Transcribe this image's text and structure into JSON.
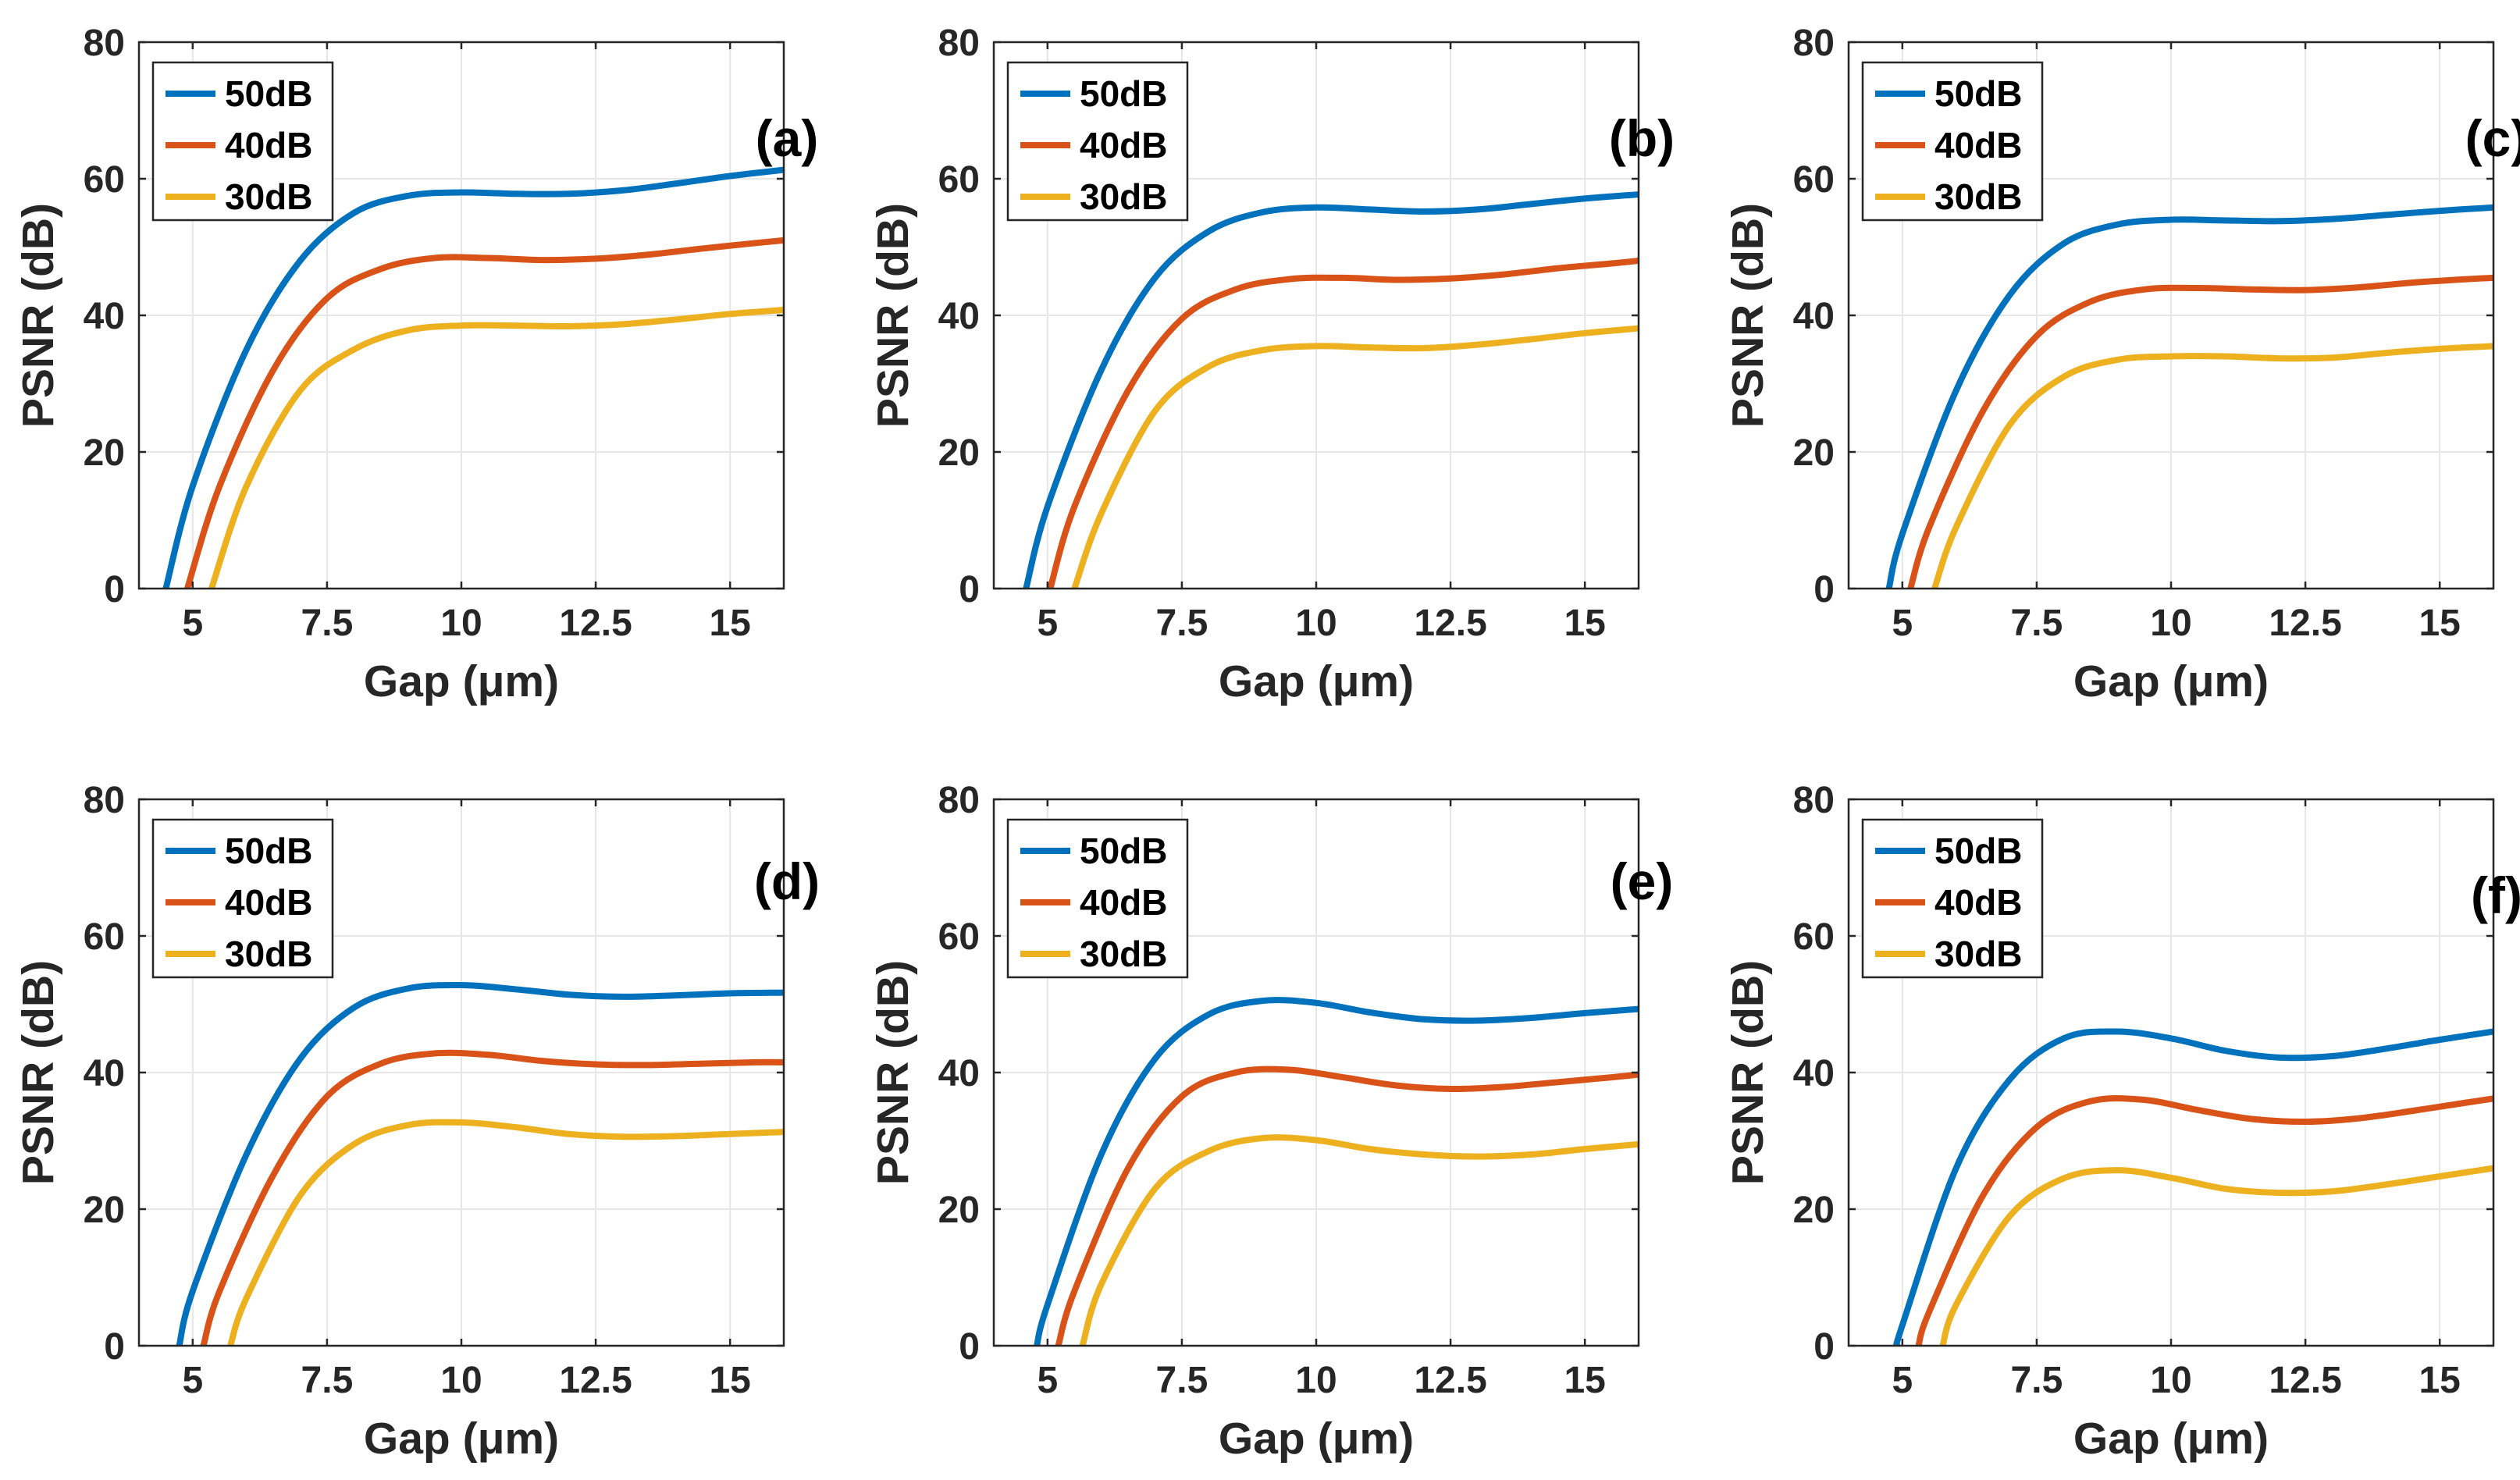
{
  "figure": {
    "series_names": [
      "50dB",
      "40dB",
      "30dB"
    ],
    "colors": [
      "#0072BD",
      "#D95319",
      "#EDB120"
    ]
  },
  "chart_data": [
    {
      "type": "line",
      "panel_label": "(a)",
      "xlabel": "Gap (μm)",
      "ylabel": "PSNR (dB)",
      "xlim": [
        4.0,
        16.0
      ],
      "ylim": [
        0,
        80
      ],
      "xticks": [
        5,
        7.5,
        10,
        12.5,
        15
      ],
      "xtick_labels": [
        "5",
        "7.5",
        "10",
        "12.5",
        "15"
      ],
      "yticks": [
        0,
        20,
        40,
        60,
        80
      ],
      "ytick_labels": [
        "0",
        "20",
        "40",
        "60",
        "80"
      ],
      "legend_location": "top-left",
      "series": [
        {
          "name": "50dB",
          "x": [
            4.5,
            5.0,
            6.0,
            7.0,
            8.0,
            9.0,
            10.0,
            11.0,
            12.0,
            13.0,
            14.0,
            15.0,
            16.0
          ],
          "values": [
            0,
            15,
            35,
            48,
            55,
            57.5,
            58,
            57.8,
            57.8,
            58.3,
            59.3,
            60.4,
            61.3
          ]
        },
        {
          "name": "40dB",
          "x": [
            4.9,
            5.5,
            6.5,
            7.5,
            8.5,
            9.5,
            10.5,
            11.5,
            12.5,
            13.5,
            14.5,
            15.5,
            16.0
          ],
          "values": [
            0,
            15,
            32,
            42.5,
            46.8,
            48.4,
            48.4,
            48.1,
            48.3,
            48.9,
            49.8,
            50.6,
            51.0
          ]
        },
        {
          "name": "30dB",
          "x": [
            5.35,
            6.0,
            7.0,
            8.0,
            9.0,
            10.0,
            11.0,
            12.0,
            13.0,
            14.0,
            15.0,
            16.0
          ],
          "values": [
            0,
            15,
            29,
            35,
            37.8,
            38.5,
            38.5,
            38.4,
            38.7,
            39.4,
            40.2,
            40.8
          ]
        }
      ]
    },
    {
      "type": "line",
      "panel_label": "(b)",
      "xlabel": "Gap (μm)",
      "ylabel": "PSNR (dB)",
      "xlim": [
        4.0,
        16.0
      ],
      "ylim": [
        0,
        80
      ],
      "xticks": [
        5,
        7.5,
        10,
        12.5,
        15
      ],
      "xtick_labels": [
        "5",
        "7.5",
        "10",
        "12.5",
        "15"
      ],
      "yticks": [
        0,
        20,
        40,
        60,
        80
      ],
      "ytick_labels": [
        "0",
        "20",
        "40",
        "60",
        "80"
      ],
      "legend_location": "top-left",
      "series": [
        {
          "name": "50dB",
          "x": [
            4.6,
            5.0,
            6.0,
            7.0,
            8.0,
            9.0,
            10.0,
            11.0,
            12.0,
            13.0,
            14.0,
            15.0,
            16.0
          ],
          "values": [
            0,
            12,
            32,
            45.5,
            52.3,
            55.1,
            55.8,
            55.5,
            55.2,
            55.5,
            56.3,
            57.1,
            57.7
          ]
        },
        {
          "name": "40dB",
          "x": [
            5.05,
            5.5,
            6.5,
            7.5,
            8.5,
            9.5,
            10.5,
            11.5,
            12.5,
            13.5,
            14.5,
            15.5,
            16.0
          ],
          "values": [
            0,
            12,
            29,
            39.5,
            43.8,
            45.3,
            45.5,
            45.2,
            45.4,
            46.0,
            46.9,
            47.6,
            48.0
          ]
        },
        {
          "name": "30dB",
          "x": [
            5.5,
            6.0,
            7.0,
            8.0,
            9.0,
            10.0,
            11.0,
            12.0,
            13.0,
            14.0,
            15.0,
            16.0
          ],
          "values": [
            0,
            11,
            26,
            32.5,
            34.9,
            35.5,
            35.3,
            35.2,
            35.7,
            36.5,
            37.4,
            38.1
          ]
        }
      ]
    },
    {
      "type": "line",
      "panel_label": "(c)",
      "xlabel": "Gap (μm)",
      "ylabel": "PSNR (dB)",
      "xlim": [
        4.0,
        16.0
      ],
      "ylim": [
        0,
        80
      ],
      "xticks": [
        5,
        7.5,
        10,
        12.5,
        15
      ],
      "xtick_labels": [
        "5",
        "7.5",
        "10",
        "12.5",
        "15"
      ],
      "yticks": [
        0,
        20,
        40,
        60,
        80
      ],
      "ytick_labels": [
        "0",
        "20",
        "40",
        "60",
        "80"
      ],
      "legend_location": "top-left",
      "series": [
        {
          "name": "50dB",
          "x": [
            4.75,
            5.0,
            6.0,
            7.0,
            8.0,
            9.0,
            10.0,
            11.0,
            12.0,
            13.0,
            14.0,
            15.0,
            16.0
          ],
          "values": [
            0,
            8,
            29,
            43,
            50.5,
            53.3,
            54,
            53.9,
            53.8,
            54.1,
            54.7,
            55.3,
            55.8
          ]
        },
        {
          "name": "40dB",
          "x": [
            5.15,
            5.5,
            6.5,
            7.5,
            8.5,
            9.5,
            10.5,
            11.5,
            12.5,
            13.5,
            14.5,
            15.5,
            16.0
          ],
          "values": [
            0,
            9,
            26,
            37,
            42,
            43.8,
            44,
            43.8,
            43.7,
            44.1,
            44.8,
            45.3,
            45.5
          ]
        },
        {
          "name": "30dB",
          "x": [
            5.6,
            6.0,
            7.0,
            8.0,
            9.0,
            10.0,
            11.0,
            12.0,
            13.0,
            14.0,
            15.0,
            16.0
          ],
          "values": [
            0,
            9,
            24,
            31,
            33.5,
            34,
            34,
            33.7,
            33.8,
            34.5,
            35.1,
            35.5
          ]
        }
      ]
    },
    {
      "type": "line",
      "panel_label": "(d)",
      "xlabel": "Gap (μm)",
      "ylabel": "PSNR (dB)",
      "xlim": [
        4.0,
        16.0
      ],
      "ylim": [
        0,
        80
      ],
      "xticks": [
        5,
        7.5,
        10,
        12.5,
        15
      ],
      "xtick_labels": [
        "5",
        "7.5",
        "10",
        "12.5",
        "15"
      ],
      "yticks": [
        0,
        20,
        40,
        60,
        80
      ],
      "ytick_labels": [
        "0",
        "20",
        "40",
        "60",
        "80"
      ],
      "legend_location": "top-left",
      "series": [
        {
          "name": "50dB",
          "x": [
            4.75,
            5.0,
            6.0,
            7.0,
            8.0,
            9.0,
            10.0,
            11.0,
            12.0,
            13.0,
            14.0,
            15.0,
            16.0
          ],
          "values": [
            0,
            8,
            28,
            42,
            49.5,
            52.3,
            52.8,
            52.2,
            51.4,
            51.1,
            51.3,
            51.6,
            51.7
          ]
        },
        {
          "name": "40dB",
          "x": [
            5.2,
            5.5,
            6.5,
            7.5,
            8.5,
            9.5,
            10.5,
            11.5,
            12.5,
            13.5,
            14.5,
            15.5,
            16.0
          ],
          "values": [
            0,
            8,
            25,
            36.5,
            41.3,
            42.8,
            42.6,
            41.7,
            41.2,
            41.1,
            41.3,
            41.5,
            41.5
          ]
        },
        {
          "name": "30dB",
          "x": [
            5.7,
            6.0,
            7.0,
            8.0,
            9.0,
            10.0,
            11.0,
            12.0,
            13.0,
            14.0,
            15.0,
            16.0
          ],
          "values": [
            0,
            7,
            22,
            29.5,
            32.3,
            32.7,
            32.0,
            31.0,
            30.6,
            30.7,
            31.0,
            31.3
          ]
        }
      ]
    },
    {
      "type": "line",
      "panel_label": "(e)",
      "xlabel": "Gap (μm)",
      "ylabel": "PSNR (dB)",
      "xlim": [
        4.0,
        16.0
      ],
      "ylim": [
        0,
        80
      ],
      "xticks": [
        5,
        7.5,
        10,
        12.5,
        15
      ],
      "xtick_labels": [
        "5",
        "7.5",
        "10",
        "12.5",
        "15"
      ],
      "yticks": [
        0,
        20,
        40,
        60,
        80
      ],
      "ytick_labels": [
        "0",
        "20",
        "40",
        "60",
        "80"
      ],
      "legend_location": "top-left",
      "series": [
        {
          "name": "50dB",
          "x": [
            4.8,
            5.0,
            6.0,
            7.0,
            8.0,
            9.0,
            10.0,
            11.0,
            12.0,
            13.0,
            14.0,
            15.0,
            16.0
          ],
          "values": [
            0,
            6,
            28,
            42,
            48.5,
            50.5,
            50.2,
            48.8,
            47.8,
            47.6,
            48,
            48.7,
            49.3
          ]
        },
        {
          "name": "40dB",
          "x": [
            5.2,
            5.5,
            6.5,
            7.5,
            8.5,
            9.5,
            10.5,
            11.5,
            12.5,
            13.5,
            14.5,
            15.5,
            16.0
          ],
          "values": [
            0,
            8,
            26,
            36.5,
            40,
            40.4,
            39.3,
            38.1,
            37.6,
            37.9,
            38.6,
            39.3,
            39.7
          ]
        },
        {
          "name": "30dB",
          "x": [
            5.65,
            6.0,
            7.0,
            8.0,
            9.0,
            10.0,
            11.0,
            12.0,
            13.0,
            14.0,
            15.0,
            16.0
          ],
          "values": [
            0,
            9,
            23,
            28.5,
            30.4,
            30.1,
            28.8,
            28.0,
            27.7,
            28.0,
            28.8,
            29.5
          ]
        }
      ]
    },
    {
      "type": "line",
      "panel_label": "(f)",
      "xlabel": "Gap (μm)",
      "ylabel": "PSNR (dB)",
      "xlim": [
        4.0,
        16.0
      ],
      "ylim": [
        0,
        80
      ],
      "xticks": [
        5,
        7.5,
        10,
        12.5,
        15
      ],
      "xtick_labels": [
        "5",
        "7.5",
        "10",
        "12.5",
        "15"
      ],
      "yticks": [
        0,
        20,
        40,
        60,
        80
      ],
      "ytick_labels": [
        "0",
        "20",
        "40",
        "60",
        "80"
      ],
      "legend_location": "top-left",
      "series": [
        {
          "name": "50dB",
          "x": [
            4.9,
            5.0,
            6.0,
            7.0,
            8.0,
            9.0,
            10.0,
            11.0,
            12.0,
            13.0,
            14.0,
            15.0,
            16.0
          ],
          "values": [
            0,
            3,
            26,
            39,
            45,
            46,
            45,
            43.2,
            42.2,
            42.4,
            43.5,
            44.8,
            46
          ]
        },
        {
          "name": "40dB",
          "x": [
            5.3,
            5.5,
            6.5,
            7.5,
            8.5,
            9.5,
            10.5,
            11.5,
            12.5,
            13.5,
            14.5,
            15.5,
            16.0
          ],
          "values": [
            0,
            5,
            22,
            32,
            35.8,
            36,
            34.5,
            33.2,
            32.8,
            33.3,
            34.4,
            35.6,
            36.2
          ]
        },
        {
          "name": "30dB",
          "x": [
            5.75,
            6.0,
            7.0,
            8.0,
            9.0,
            10.0,
            11.0,
            12.0,
            13.0,
            14.0,
            15.0,
            16.0
          ],
          "values": [
            0,
            6,
            19,
            24.5,
            25.7,
            24.6,
            23.0,
            22.4,
            22.6,
            23.6,
            24.8,
            26.0
          ]
        }
      ]
    }
  ]
}
